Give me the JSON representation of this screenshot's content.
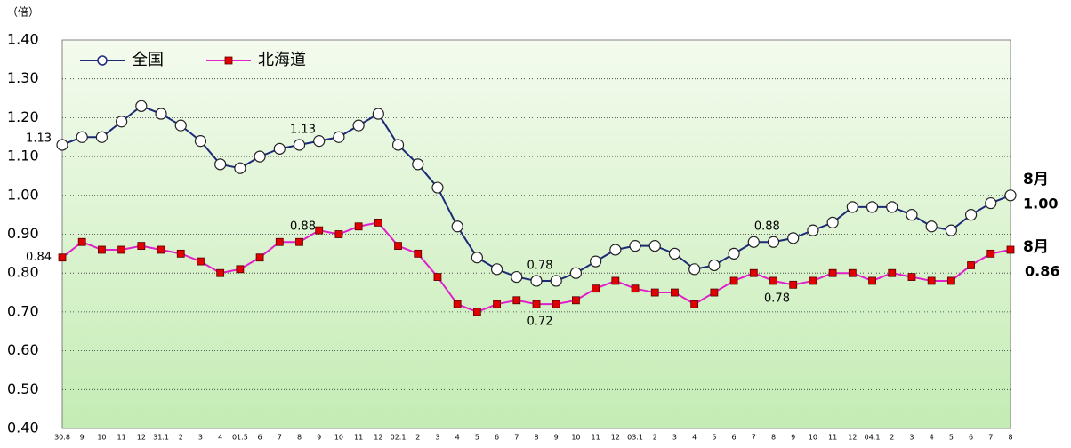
{
  "chart_data": {
    "type": "line",
    "y_label": "（倍）",
    "categories": [
      "30.8",
      "9",
      "10",
      "11",
      "12",
      "31.1",
      "2",
      "3",
      "4",
      "01.5",
      "6",
      "7",
      "8",
      "9",
      "10",
      "11",
      "12",
      "02.1",
      "2",
      "3",
      "4",
      "5",
      "6",
      "7",
      "8",
      "9",
      "10",
      "11",
      "12",
      "03.1",
      "2",
      "3",
      "4",
      "5",
      "6",
      "7",
      "8",
      "9",
      "10",
      "11",
      "12",
      "04.1",
      "2",
      "3",
      "4",
      "5",
      "6",
      "7",
      "8"
    ],
    "ylim": [
      0.4,
      1.4
    ],
    "yticks": [
      {
        "value": 0.4,
        "label": "0.40"
      },
      {
        "value": 0.5,
        "label": "0.50"
      },
      {
        "value": 0.6,
        "label": "0.60"
      },
      {
        "value": 0.7,
        "label": "0.70"
      },
      {
        "value": 0.8,
        "label": "0.80"
      },
      {
        "value": 0.9,
        "label": "0.90"
      },
      {
        "value": 1.0,
        "label": "1.00"
      },
      {
        "value": 1.1,
        "label": "1.10"
      },
      {
        "value": 1.2,
        "label": "1.20"
      },
      {
        "value": 1.3,
        "label": "1.30"
      },
      {
        "value": 1.4,
        "label": "1.40"
      }
    ],
    "grid": true,
    "legend": "top-left",
    "series": [
      {
        "name": "全国",
        "color": "#1c2a78",
        "marker": "circle",
        "end_label": "8月",
        "values": [
          1.13,
          1.15,
          1.15,
          1.19,
          1.23,
          1.21,
          1.18,
          1.14,
          1.08,
          1.07,
          1.1,
          1.12,
          1.13,
          1.14,
          1.15,
          1.18,
          1.21,
          1.13,
          1.08,
          1.02,
          0.92,
          0.84,
          0.81,
          0.79,
          0.78,
          0.78,
          0.8,
          0.83,
          0.86,
          0.87,
          0.87,
          0.85,
          0.81,
          0.82,
          0.85,
          0.88,
          0.88,
          0.89,
          0.91,
          0.93,
          0.97,
          0.97,
          0.97,
          0.95,
          0.92,
          0.91,
          0.95,
          0.98,
          1.0
        ],
        "value_labels": [
          "1.13",
          null,
          null,
          null,
          null,
          null,
          null,
          null,
          null,
          null,
          null,
          null,
          "1.13",
          null,
          null,
          null,
          null,
          null,
          null,
          null,
          null,
          null,
          null,
          null,
          "0.78",
          null,
          null,
          null,
          null,
          null,
          null,
          null,
          null,
          null,
          null,
          "0.88",
          null,
          null,
          null,
          null,
          null,
          null,
          null,
          null,
          null,
          null,
          null,
          null,
          "1.00"
        ]
      },
      {
        "name": "北海道",
        "color": "#e020c8",
        "marker_color": "#e00000",
        "marker": "square",
        "end_label": "8月",
        "values": [
          0.84,
          0.88,
          0.86,
          0.86,
          0.87,
          0.86,
          0.85,
          0.83,
          0.8,
          0.81,
          0.84,
          0.88,
          0.88,
          0.91,
          0.9,
          0.92,
          0.93,
          0.87,
          0.85,
          0.79,
          0.72,
          0.7,
          0.72,
          0.73,
          0.72,
          0.72,
          0.73,
          0.76,
          0.78,
          0.76,
          0.75,
          0.75,
          0.72,
          0.75,
          0.78,
          0.8,
          0.78,
          0.77,
          0.78,
          0.8,
          0.8,
          0.78,
          0.8,
          0.79,
          0.78,
          0.78,
          0.82,
          0.85,
          0.86
        ],
        "value_labels": [
          "0.84",
          null,
          null,
          null,
          null,
          null,
          null,
          null,
          null,
          null,
          null,
          null,
          "0.88",
          null,
          null,
          null,
          null,
          null,
          null,
          null,
          null,
          null,
          null,
          null,
          "0.72",
          null,
          null,
          null,
          null,
          null,
          null,
          null,
          null,
          null,
          null,
          null,
          "0.78",
          null,
          null,
          null,
          null,
          null,
          null,
          null,
          null,
          null,
          null,
          null,
          "0.86"
        ]
      }
    ]
  }
}
